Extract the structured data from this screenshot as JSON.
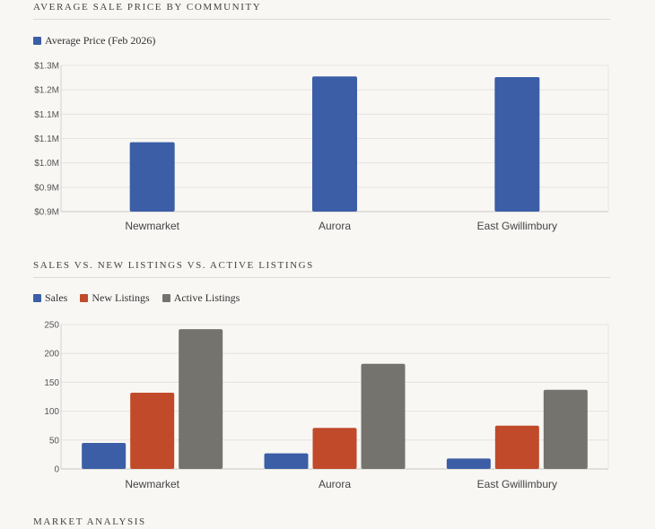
{
  "sections": {
    "price_title": "AVERAGE SALE PRICE BY COMMUNITY",
    "sales_title": "SALES VS. NEW LISTINGS VS. ACTIVE LISTINGS",
    "analysis_title": "MARKET ANALYSIS"
  },
  "chart_data": [
    {
      "type": "bar",
      "categories": [
        "Newmarket",
        "Aurora",
        "East Gwillimbury"
      ],
      "series": [
        {
          "name": "Average Price (Feb 2026)",
          "color": "#3b5ea6",
          "values": [
            1090000,
            1270000,
            1268000
          ]
        }
      ],
      "y_ticks": [
        "$0.9M",
        "$0.9M",
        "$1.0M",
        "$1.1M",
        "$1.1M",
        "$1.2M",
        "$1.3M"
      ],
      "ylim": [
        900000,
        1300000
      ],
      "legend": "top-left",
      "grid": true
    },
    {
      "type": "bar",
      "categories": [
        "Newmarket",
        "Aurora",
        "East Gwillimbury"
      ],
      "series": [
        {
          "name": "Sales",
          "color": "#3b5ea6",
          "values": [
            45,
            27,
            18
          ]
        },
        {
          "name": "New Listings",
          "color": "#c04a2a",
          "values": [
            132,
            71,
            75
          ]
        },
        {
          "name": "Active Listings",
          "color": "#75736d",
          "values": [
            242,
            182,
            137
          ]
        }
      ],
      "y_ticks": [
        "0",
        "50",
        "100",
        "150",
        "200",
        "250"
      ],
      "ylim": [
        0,
        250
      ],
      "legend": "top-left",
      "grid": true
    }
  ]
}
